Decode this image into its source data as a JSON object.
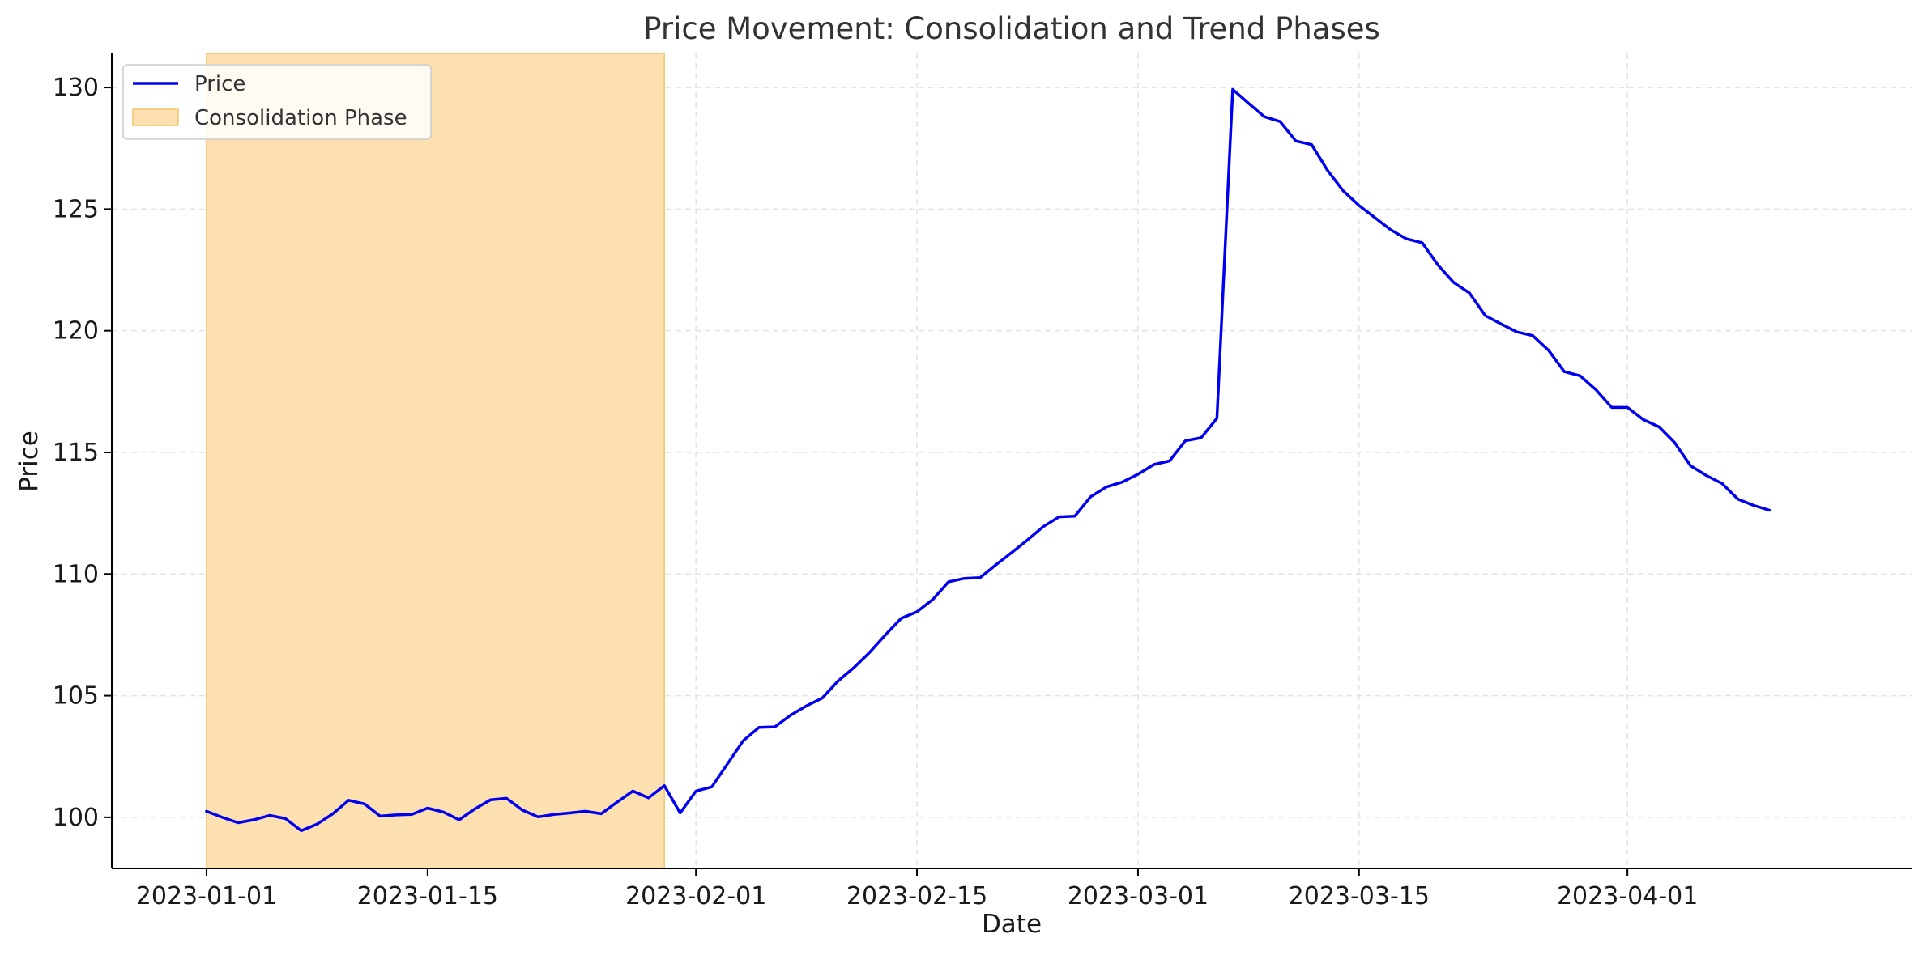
{
  "chart_data": {
    "type": "line",
    "title": "Price Movement: Consolidation and Trend Phases",
    "xlabel": "Date",
    "ylabel": "Price",
    "x_ticks": [
      "2023-01-01",
      "2023-01-15",
      "2023-02-01",
      "2023-02-15",
      "2023-03-01",
      "2023-03-15",
      "2023-04-01"
    ],
    "y_ticks": [
      100,
      105,
      110,
      115,
      120,
      125,
      130
    ],
    "xlim": [
      "2022-12-26",
      "2023-04-19"
    ],
    "ylim": [
      97.9,
      131.4
    ],
    "grid": true,
    "legend_position": "upper left",
    "legend": [
      "Price",
      "Consolidation Phase"
    ],
    "shaded_region": {
      "name": "Consolidation Phase",
      "start": "2023-01-01",
      "end": "2023-01-30",
      "color": "#fde0b0"
    },
    "series": [
      {
        "name": "Price",
        "color": "#0000ee",
        "x": [
          "2023-01-01",
          "2023-01-02",
          "2023-01-03",
          "2023-01-04",
          "2023-01-05",
          "2023-01-06",
          "2023-01-07",
          "2023-01-08",
          "2023-01-09",
          "2023-01-10",
          "2023-01-11",
          "2023-01-12",
          "2023-01-13",
          "2023-01-14",
          "2023-01-15",
          "2023-01-16",
          "2023-01-17",
          "2023-01-18",
          "2023-01-19",
          "2023-01-20",
          "2023-01-21",
          "2023-01-22",
          "2023-01-23",
          "2023-01-24",
          "2023-01-25",
          "2023-01-26",
          "2023-01-27",
          "2023-01-28",
          "2023-01-29",
          "2023-01-30",
          "2023-01-31",
          "2023-02-01",
          "2023-02-02",
          "2023-02-03",
          "2023-02-04",
          "2023-02-05",
          "2023-02-06",
          "2023-02-07",
          "2023-02-08",
          "2023-02-09",
          "2023-02-10",
          "2023-02-11",
          "2023-02-12",
          "2023-02-13",
          "2023-02-14",
          "2023-02-15",
          "2023-02-16",
          "2023-02-17",
          "2023-02-18",
          "2023-02-19",
          "2023-02-20",
          "2023-02-21",
          "2023-02-22",
          "2023-02-23",
          "2023-02-24",
          "2023-02-25",
          "2023-02-26",
          "2023-02-27",
          "2023-02-28",
          "2023-03-01",
          "2023-03-02",
          "2023-03-03",
          "2023-03-04",
          "2023-03-05",
          "2023-03-06",
          "2023-03-07",
          "2023-03-08",
          "2023-03-09",
          "2023-03-10",
          "2023-03-11",
          "2023-03-12",
          "2023-03-13",
          "2023-03-14",
          "2023-03-15",
          "2023-03-16",
          "2023-03-17",
          "2023-03-18",
          "2023-03-19",
          "2023-03-20",
          "2023-03-21",
          "2023-03-22",
          "2023-03-23",
          "2023-03-24",
          "2023-03-25",
          "2023-03-26",
          "2023-03-27",
          "2023-03-28",
          "2023-03-29",
          "2023-03-30",
          "2023-03-31",
          "2023-04-01",
          "2023-04-02",
          "2023-04-03",
          "2023-04-04",
          "2023-04-05",
          "2023-04-06",
          "2023-04-07",
          "2023-04-08",
          "2023-04-09",
          "2023-04-10"
        ],
        "values": [
          100.25,
          100.0,
          99.78,
          99.9,
          100.08,
          99.95,
          99.45,
          99.72,
          100.15,
          100.7,
          100.55,
          100.05,
          100.1,
          100.12,
          100.38,
          100.22,
          99.9,
          100.35,
          100.72,
          100.78,
          100.3,
          100.02,
          100.12,
          100.18,
          100.25,
          100.15,
          100.62,
          101.08,
          100.8,
          101.3,
          100.18,
          101.08,
          101.25,
          102.2,
          103.15,
          103.7,
          103.72,
          104.2,
          104.58,
          104.9,
          105.6,
          106.15,
          106.78,
          107.5,
          108.18,
          108.45,
          108.95,
          109.68,
          109.82,
          109.85,
          110.38,
          110.88,
          111.4,
          111.95,
          112.35,
          112.38,
          113.18,
          113.58,
          113.78,
          114.1,
          114.5,
          114.65,
          115.48,
          115.6,
          116.4,
          129.92,
          129.35,
          128.8,
          128.6,
          127.8,
          127.65,
          126.6,
          125.75,
          125.15,
          124.65,
          124.15,
          123.78,
          123.62,
          122.7,
          121.98,
          121.55,
          120.62,
          120.28,
          119.95,
          119.8,
          119.2,
          118.32,
          118.15,
          117.58,
          116.85,
          116.85,
          116.35,
          116.05,
          115.4,
          114.45,
          114.05,
          113.72,
          113.08,
          112.82,
          112.62
        ]
      }
    ]
  }
}
